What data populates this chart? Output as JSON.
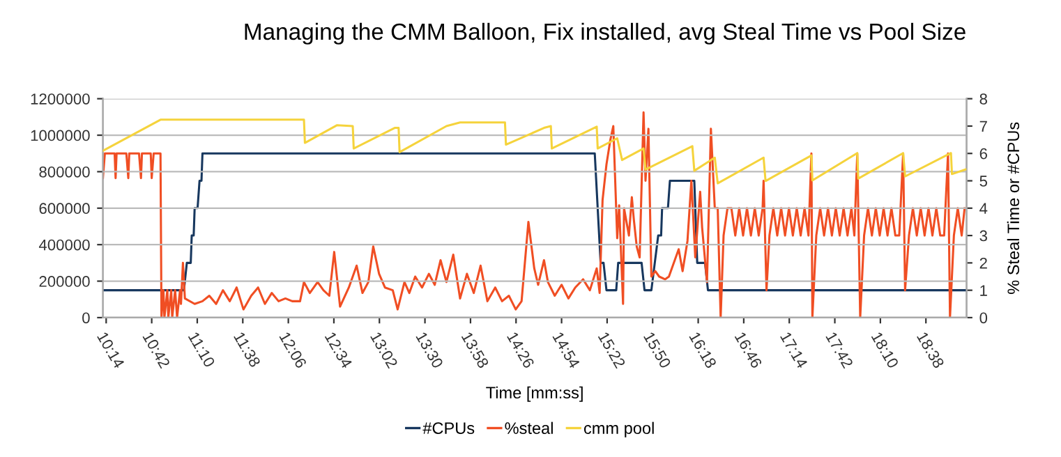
{
  "chart_data": {
    "type": "line",
    "title": "Managing the CMM Balloon, Fix installed, avg Steal Time vs Pool Size",
    "xlabel": "Time [mm:ss]",
    "y2label": "% Steal Time or #CPUs",
    "xlim": [
      10.2,
      19.05
    ],
    "xticks": [
      {
        "value": 10.2333,
        "label": "10:14"
      },
      {
        "value": 10.7,
        "label": "10:42"
      },
      {
        "value": 11.1667,
        "label": "11:10"
      },
      {
        "value": 11.6333,
        "label": "11:38"
      },
      {
        "value": 12.1,
        "label": "12:06"
      },
      {
        "value": 12.5667,
        "label": "12:34"
      },
      {
        "value": 13.0333,
        "label": "13:02"
      },
      {
        "value": 13.5,
        "label": "13:30"
      },
      {
        "value": 13.9667,
        "label": "13:58"
      },
      {
        "value": 14.4333,
        "label": "14:26"
      },
      {
        "value": 14.9,
        "label": "14:54"
      },
      {
        "value": 15.3667,
        "label": "15:22"
      },
      {
        "value": 15.8333,
        "label": "15:50"
      },
      {
        "value": 16.3,
        "label": "16:18"
      },
      {
        "value": 16.7667,
        "label": "16:46"
      },
      {
        "value": 17.2333,
        "label": "17:14"
      },
      {
        "value": 17.7,
        "label": "17:42"
      },
      {
        "value": 18.1667,
        "label": "18:10"
      },
      {
        "value": 18.6333,
        "label": "18:38"
      }
    ],
    "ylim": [
      0,
      1200000
    ],
    "yticks": [
      0,
      200000,
      400000,
      600000,
      800000,
      1000000,
      1200000
    ],
    "y2lim": [
      0,
      8
    ],
    "y2ticks": [
      0,
      1,
      2,
      3,
      4,
      5,
      6,
      7,
      8
    ],
    "grid": "y",
    "legend": "bottom",
    "marker": "none",
    "line_style": "solid",
    "series": [
      {
        "name": "#CPUs",
        "color": "#17375e",
        "axis": "y2",
        "x": [
          10.2,
          11.03,
          11.06,
          11.1,
          11.11,
          11.13,
          11.14,
          11.17,
          11.19,
          11.21,
          11.22,
          15.24,
          15.3,
          15.33,
          15.36,
          15.46,
          15.48,
          15.72,
          15.75,
          15.82,
          15.89,
          15.92,
          15.93,
          15.99,
          16.01,
          16.26,
          16.29,
          16.37,
          16.4,
          19.04
        ],
        "values": [
          1,
          1,
          2,
          2,
          3,
          3,
          4,
          4,
          5,
          5,
          6,
          6,
          2,
          2,
          1,
          1,
          2,
          2,
          1,
          1,
          3,
          3,
          4,
          4,
          5,
          5,
          2,
          2,
          1,
          1
        ]
      },
      {
        "name": "%steal",
        "color": "#f04e23",
        "axis": "y2",
        "x": [
          10.2,
          10.22,
          10.32,
          10.33,
          10.34,
          10.44,
          10.46,
          10.47,
          10.57,
          10.59,
          10.6,
          10.69,
          10.7,
          10.72,
          10.79,
          10.8,
          10.82,
          10.83,
          10.86,
          10.87,
          10.9,
          10.91,
          10.94,
          10.96,
          10.99,
          11.0,
          11.02,
          11.04,
          11.14,
          11.22,
          11.29,
          11.36,
          11.43,
          11.5,
          11.57,
          11.64,
          11.72,
          11.79,
          11.86,
          11.93,
          12.0,
          12.07,
          12.14,
          12.22,
          12.26,
          12.32,
          12.4,
          12.46,
          12.52,
          12.57,
          12.63,
          12.72,
          12.8,
          12.86,
          12.92,
          12.97,
          13.03,
          13.09,
          13.17,
          13.22,
          13.29,
          13.34,
          13.4,
          13.47,
          13.54,
          13.6,
          13.66,
          13.72,
          13.79,
          13.86,
          13.93,
          14.0,
          14.07,
          14.14,
          14.22,
          14.29,
          14.36,
          14.43,
          14.49,
          14.56,
          14.62,
          14.66,
          14.72,
          14.76,
          14.83,
          14.9,
          14.97,
          15.04,
          15.12,
          15.19,
          15.26,
          15.29,
          15.32,
          15.36,
          15.4,
          15.43,
          15.47,
          15.49,
          15.53,
          15.54,
          15.59,
          15.62,
          15.64,
          15.67,
          15.7,
          15.74,
          15.76,
          15.79,
          15.82,
          15.86,
          15.9,
          15.96,
          16.0,
          16.04,
          16.1,
          16.14,
          16.19,
          16.23,
          16.27,
          16.32,
          16.34,
          16.39,
          16.43,
          16.47,
          16.5,
          16.53,
          16.56,
          16.6,
          16.64,
          16.68,
          16.72,
          16.76,
          16.8,
          16.84,
          16.88,
          16.92,
          16.96,
          16.97,
          17.0,
          17.03,
          17.07,
          17.11,
          17.15,
          17.19,
          17.23,
          17.27,
          17.31,
          17.35,
          17.39,
          17.43,
          17.46,
          17.47,
          17.51,
          17.55,
          17.59,
          17.63,
          17.67,
          17.71,
          17.75,
          17.79,
          17.83,
          17.87,
          17.9,
          17.93,
          17.96,
          18.0,
          18.04,
          18.08,
          18.12,
          18.16,
          18.2,
          18.24,
          18.28,
          18.32,
          18.36,
          18.4,
          18.42,
          18.46,
          18.5,
          18.54,
          18.58,
          18.62,
          18.66,
          18.7,
          18.74,
          18.78,
          18.82,
          18.86,
          18.88,
          18.92,
          18.96,
          19.0,
          19.03
        ],
        "values": [
          5.1,
          6,
          6,
          5.1,
          6,
          6,
          5.1,
          6,
          6,
          5.1,
          6,
          6,
          5.1,
          6,
          6,
          0,
          1,
          0,
          1,
          0,
          1,
          0,
          1,
          0,
          1,
          0.5,
          2,
          0.7,
          0.5,
          0.6,
          0.8,
          0.5,
          1.0,
          0.6,
          1.1,
          0.3,
          0.8,
          1.1,
          0.5,
          0.9,
          0.6,
          0.7,
          0.6,
          0.6,
          1.3,
          0.9,
          1.3,
          1.0,
          0.8,
          2.4,
          0.4,
          1.1,
          1.9,
          0.9,
          1.3,
          2.6,
          1.6,
          1.1,
          1.0,
          0.3,
          1.3,
          0.9,
          1.5,
          1.1,
          1.6,
          1.2,
          2.1,
          1.3,
          2.3,
          0.7,
          1.6,
          0.9,
          1.9,
          0.6,
          1.1,
          0.6,
          0.8,
          0.3,
          0.6,
          3.5,
          1.8,
          1.2,
          2.1,
          1.3,
          0.8,
          1.2,
          0.7,
          1.1,
          1.4,
          1.0,
          1.8,
          0.9,
          4.3,
          5.6,
          6.5,
          7.0,
          2.9,
          4.1,
          0.5,
          4.0,
          3.0,
          4.4,
          3.6,
          2.6,
          2.2,
          7.5,
          5.0,
          6.9,
          1.5,
          1.7,
          1.5,
          1.4,
          1.5,
          1.9,
          2.5,
          1.7,
          2.8,
          5.0,
          2.2,
          4.6,
          3.3,
          1.3,
          6.9,
          4.0,
          4.0,
          0,
          3.0,
          4.0,
          4,
          3,
          4,
          3,
          4,
          3,
          4,
          3,
          4,
          5,
          1,
          3,
          4,
          3,
          4,
          3,
          4,
          3,
          4,
          3,
          4,
          3,
          6,
          0,
          3,
          4,
          3,
          4,
          3,
          4,
          3,
          4,
          3,
          4,
          3,
          6,
          0,
          3,
          4,
          3,
          4,
          3,
          4,
          3,
          4,
          3,
          3,
          6,
          1,
          3,
          4,
          3,
          4,
          3,
          4,
          3,
          4,
          3,
          3,
          6,
          0,
          3,
          4,
          3,
          4
        ]
      },
      {
        "name": "cmm pool",
        "color": "#f5d33c",
        "x": [
          10.2,
          10.79,
          12.26,
          12.27,
          12.6,
          12.76,
          12.77,
          13.19,
          13.23,
          13.24,
          13.72,
          13.86,
          14.32,
          14.33,
          14.72,
          14.79,
          14.8,
          15.26,
          15.27,
          15.47,
          15.52,
          15.74,
          15.76,
          16.24,
          16.26,
          16.47,
          16.5,
          16.97,
          16.99,
          17.46,
          17.47,
          17.93,
          17.94,
          18.4,
          18.42,
          18.89,
          18.9,
          19.04
        ],
        "values": [
          915000,
          1085000,
          1085000,
          958000,
          1055000,
          1050000,
          927000,
          1040000,
          1040000,
          907000,
          1050000,
          1070000,
          1070000,
          948000,
          1040000,
          1050000,
          927000,
          1047000,
          927000,
          983000,
          864000,
          927000,
          812000,
          940000,
          805000,
          877000,
          736000,
          877000,
          749000,
          889000,
          752000,
          902000,
          762000,
          902000,
          774000,
          902000,
          787000,
          812000
        ]
      }
    ]
  }
}
